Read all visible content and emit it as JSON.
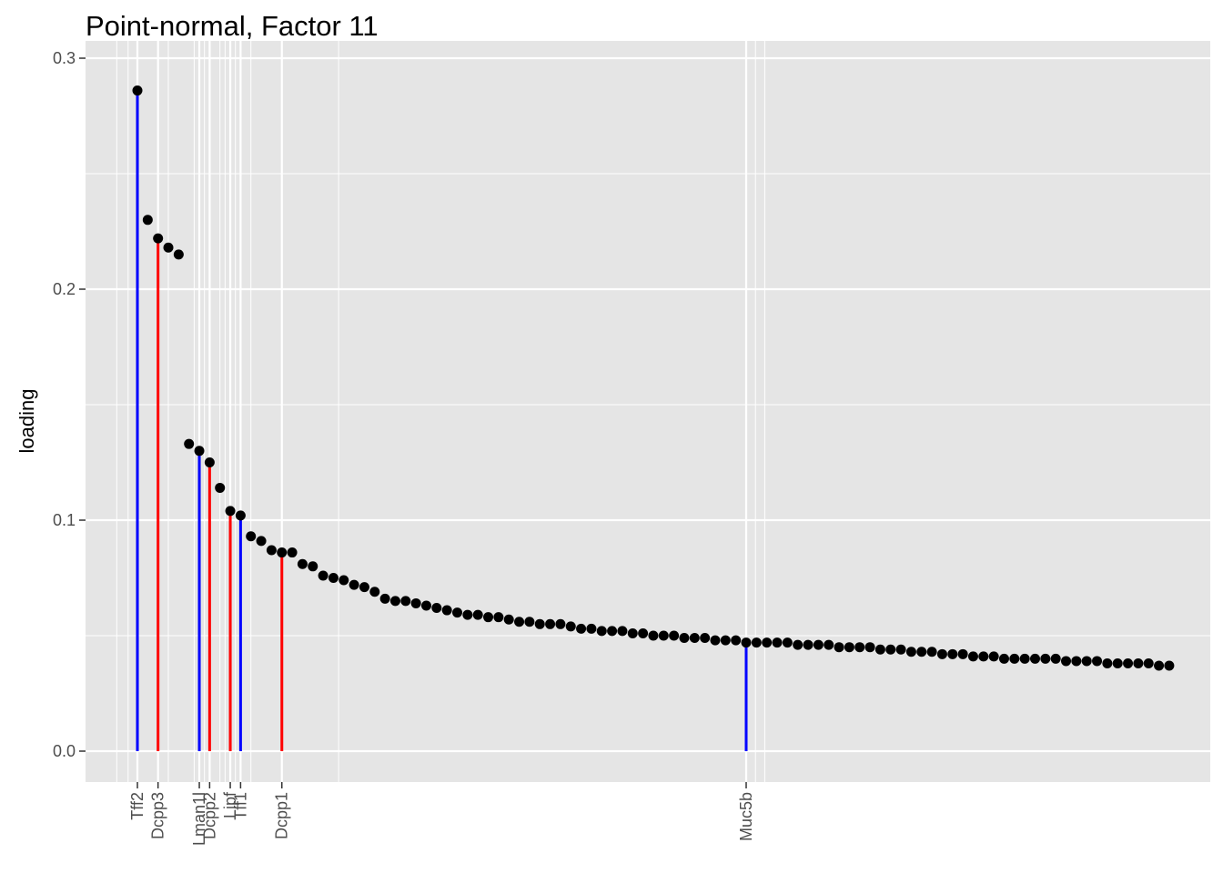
{
  "chart_data": {
    "type": "scatter",
    "title": "Point-normal, Factor 11",
    "xlabel": "",
    "ylabel": "loading",
    "xlim": [
      -1.5,
      100.5
    ],
    "ylim": [
      -0.014,
      0.3
    ],
    "yticks": [
      0.0,
      0.1,
      0.2,
      0.3
    ],
    "ytick_labels": [
      "0.0",
      "0.1",
      "0.2",
      "0.3"
    ],
    "grid": true,
    "points": [
      0.286,
      0.23,
      0.222,
      0.218,
      0.215,
      0.133,
      0.13,
      0.125,
      0.114,
      0.104,
      0.102,
      0.093,
      0.091,
      0.087,
      0.086,
      0.086,
      0.081,
      0.08,
      0.076,
      0.075,
      0.074,
      0.072,
      0.071,
      0.069,
      0.066,
      0.065,
      0.065,
      0.064,
      0.063,
      0.062,
      0.061,
      0.06,
      0.059,
      0.059,
      0.058,
      0.058,
      0.057,
      0.056,
      0.056,
      0.055,
      0.055,
      0.055,
      0.054,
      0.053,
      0.053,
      0.052,
      0.052,
      0.052,
      0.051,
      0.051,
      0.05,
      0.05,
      0.05,
      0.049,
      0.049,
      0.049,
      0.048,
      0.048,
      0.048,
      0.047,
      0.047,
      0.047,
      0.047,
      0.047,
      0.046,
      0.046,
      0.046,
      0.046,
      0.045,
      0.045,
      0.045,
      0.045,
      0.044,
      0.044,
      0.044,
      0.043,
      0.043,
      0.043,
      0.042,
      0.042,
      0.042,
      0.041,
      0.041,
      0.041,
      0.04,
      0.04,
      0.04,
      0.04,
      0.04,
      0.04,
      0.039,
      0.039,
      0.039,
      0.039,
      0.038,
      0.038,
      0.038,
      0.038,
      0.038,
      0.037,
      0.037
    ],
    "labeled_genes": [
      {
        "gene": "Tff2",
        "x": 1,
        "y": 0.286,
        "color": "blue"
      },
      {
        "gene": "Dcpp3",
        "x": 3,
        "y": 0.222,
        "color": "red"
      },
      {
        "gene": "Lman1l",
        "x": 7,
        "y": 0.13,
        "color": "blue"
      },
      {
        "gene": "Dcpp2",
        "x": 8,
        "y": 0.125,
        "color": "red"
      },
      {
        "gene": "Lipf",
        "x": 10,
        "y": 0.104,
        "color": "red"
      },
      {
        "gene": "Tff1",
        "x": 11,
        "y": 0.102,
        "color": "blue"
      },
      {
        "gene": "Dcpp1",
        "x": 15,
        "y": 0.086,
        "color": "red"
      },
      {
        "gene": "Muc5b",
        "x": 60,
        "y": 0.047,
        "color": "blue"
      }
    ],
    "minor_x_gridlines": [
      -1,
      0.1,
      4,
      6.5,
      7.5,
      9,
      9.5,
      10.5,
      12,
      20.5,
      60.9,
      61.8
    ]
  },
  "colors": {
    "panel_background": "#e5e5e5",
    "grid": "#ffffff",
    "point": "#000000",
    "blue": "#0000ff",
    "red": "#ff0000"
  }
}
